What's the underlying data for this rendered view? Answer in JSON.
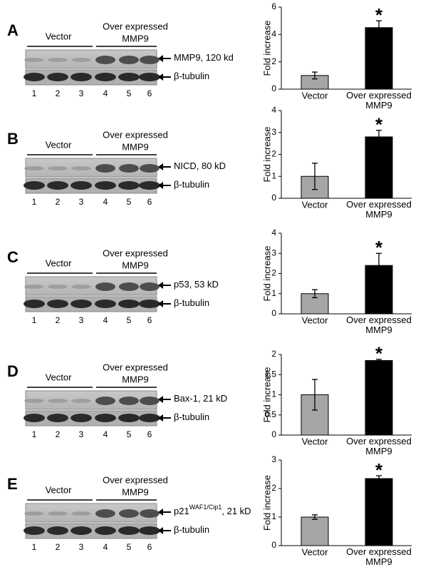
{
  "panels": [
    {
      "letter": "A",
      "group1": "Vector",
      "group2_line1": "Over expressed",
      "group2_line2": "MMP9",
      "band_top": {
        "main": "MMP9, 120 kd"
      },
      "band_bottom": {
        "main": "β-tubulin"
      },
      "lanes": [
        1,
        2,
        3,
        4,
        5,
        6
      ]
    },
    {
      "letter": "B",
      "group1": "Vector",
      "group2_line1": "Over expressed",
      "group2_line2": "MMP9",
      "band_top": {
        "main": "NICD, 80 kD"
      },
      "band_bottom": {
        "main": "β-tubulin"
      },
      "lanes": [
        1,
        2,
        3,
        4,
        5,
        6
      ]
    },
    {
      "letter": "C",
      "group1": "Vector",
      "group2_line1": "Over expressed",
      "group2_line2": "MMP9",
      "band_top": {
        "main": "p53, 53 kD"
      },
      "band_bottom": {
        "main": "β-tubulin"
      },
      "lanes": [
        1,
        2,
        3,
        4,
        5,
        6
      ]
    },
    {
      "letter": "D",
      "group1": "Vector",
      "group2_line1": "Over expressed",
      "group2_line2": "MMP9",
      "band_top": {
        "main": "Bax-1, 21 kD"
      },
      "band_bottom": {
        "main": "β-tubulin"
      },
      "lanes": [
        1,
        2,
        3,
        4,
        5,
        6
      ]
    },
    {
      "letter": "E",
      "group1": "Vector",
      "group2_line1": "Over expressed",
      "group2_line2": "MMP9",
      "band_top": {
        "main": "p21",
        "sup": "WAF1/Cip1",
        "rest": ", 21 kD"
      },
      "band_bottom": {
        "main": "β-tubulin"
      },
      "lanes": [
        1,
        2,
        3,
        4,
        5,
        6
      ]
    }
  ],
  "chart_data": [
    {
      "type": "bar",
      "y_label": "Fold increase",
      "categories": [
        "Vector",
        "Over expressed MMP9"
      ],
      "values": [
        1.0,
        4.5
      ],
      "errors": [
        0.25,
        0.5
      ],
      "colors": [
        "#a6a6a6",
        "#000000"
      ],
      "annotation": "*",
      "ylim": [
        0,
        6
      ],
      "yticks": [
        0,
        2,
        4,
        6
      ]
    },
    {
      "type": "bar",
      "y_label": "Fold increase",
      "categories": [
        "Vector",
        "Over expressed MMP9"
      ],
      "values": [
        1.0,
        2.8
      ],
      "errors": [
        0.6,
        0.3
      ],
      "colors": [
        "#a6a6a6",
        "#000000"
      ],
      "annotation": "*",
      "ylim": [
        0,
        4
      ],
      "yticks": [
        0,
        1,
        2,
        3,
        4
      ]
    },
    {
      "type": "bar",
      "y_label": "Fold increase",
      "categories": [
        "Vector",
        "Over expressed MMP9"
      ],
      "values": [
        1.0,
        2.4
      ],
      "errors": [
        0.2,
        0.6
      ],
      "colors": [
        "#a6a6a6",
        "#000000"
      ],
      "annotation": "*",
      "ylim": [
        0,
        4
      ],
      "yticks": [
        0,
        1,
        2,
        3,
        4
      ]
    },
    {
      "type": "bar",
      "y_label": "Fold increase",
      "categories": [
        "Vector",
        "Over expressed MMP9"
      ],
      "values": [
        1.0,
        1.85
      ],
      "errors": [
        0.38,
        0.03
      ],
      "colors": [
        "#a6a6a6",
        "#000000"
      ],
      "annotation": "*",
      "ylim": [
        0,
        2
      ],
      "yticks": [
        0,
        0.5,
        1,
        1.5,
        2
      ]
    },
    {
      "type": "bar",
      "y_label": "Fold increase",
      "categories": [
        "Vector",
        "Over expressed MMP9"
      ],
      "values": [
        1.0,
        2.35
      ],
      "errors": [
        0.08,
        0.1
      ],
      "colors": [
        "#a6a6a6",
        "#000000"
      ],
      "annotation": "*",
      "ylim": [
        0,
        3
      ],
      "yticks": [
        0,
        1,
        2,
        3
      ]
    }
  ]
}
